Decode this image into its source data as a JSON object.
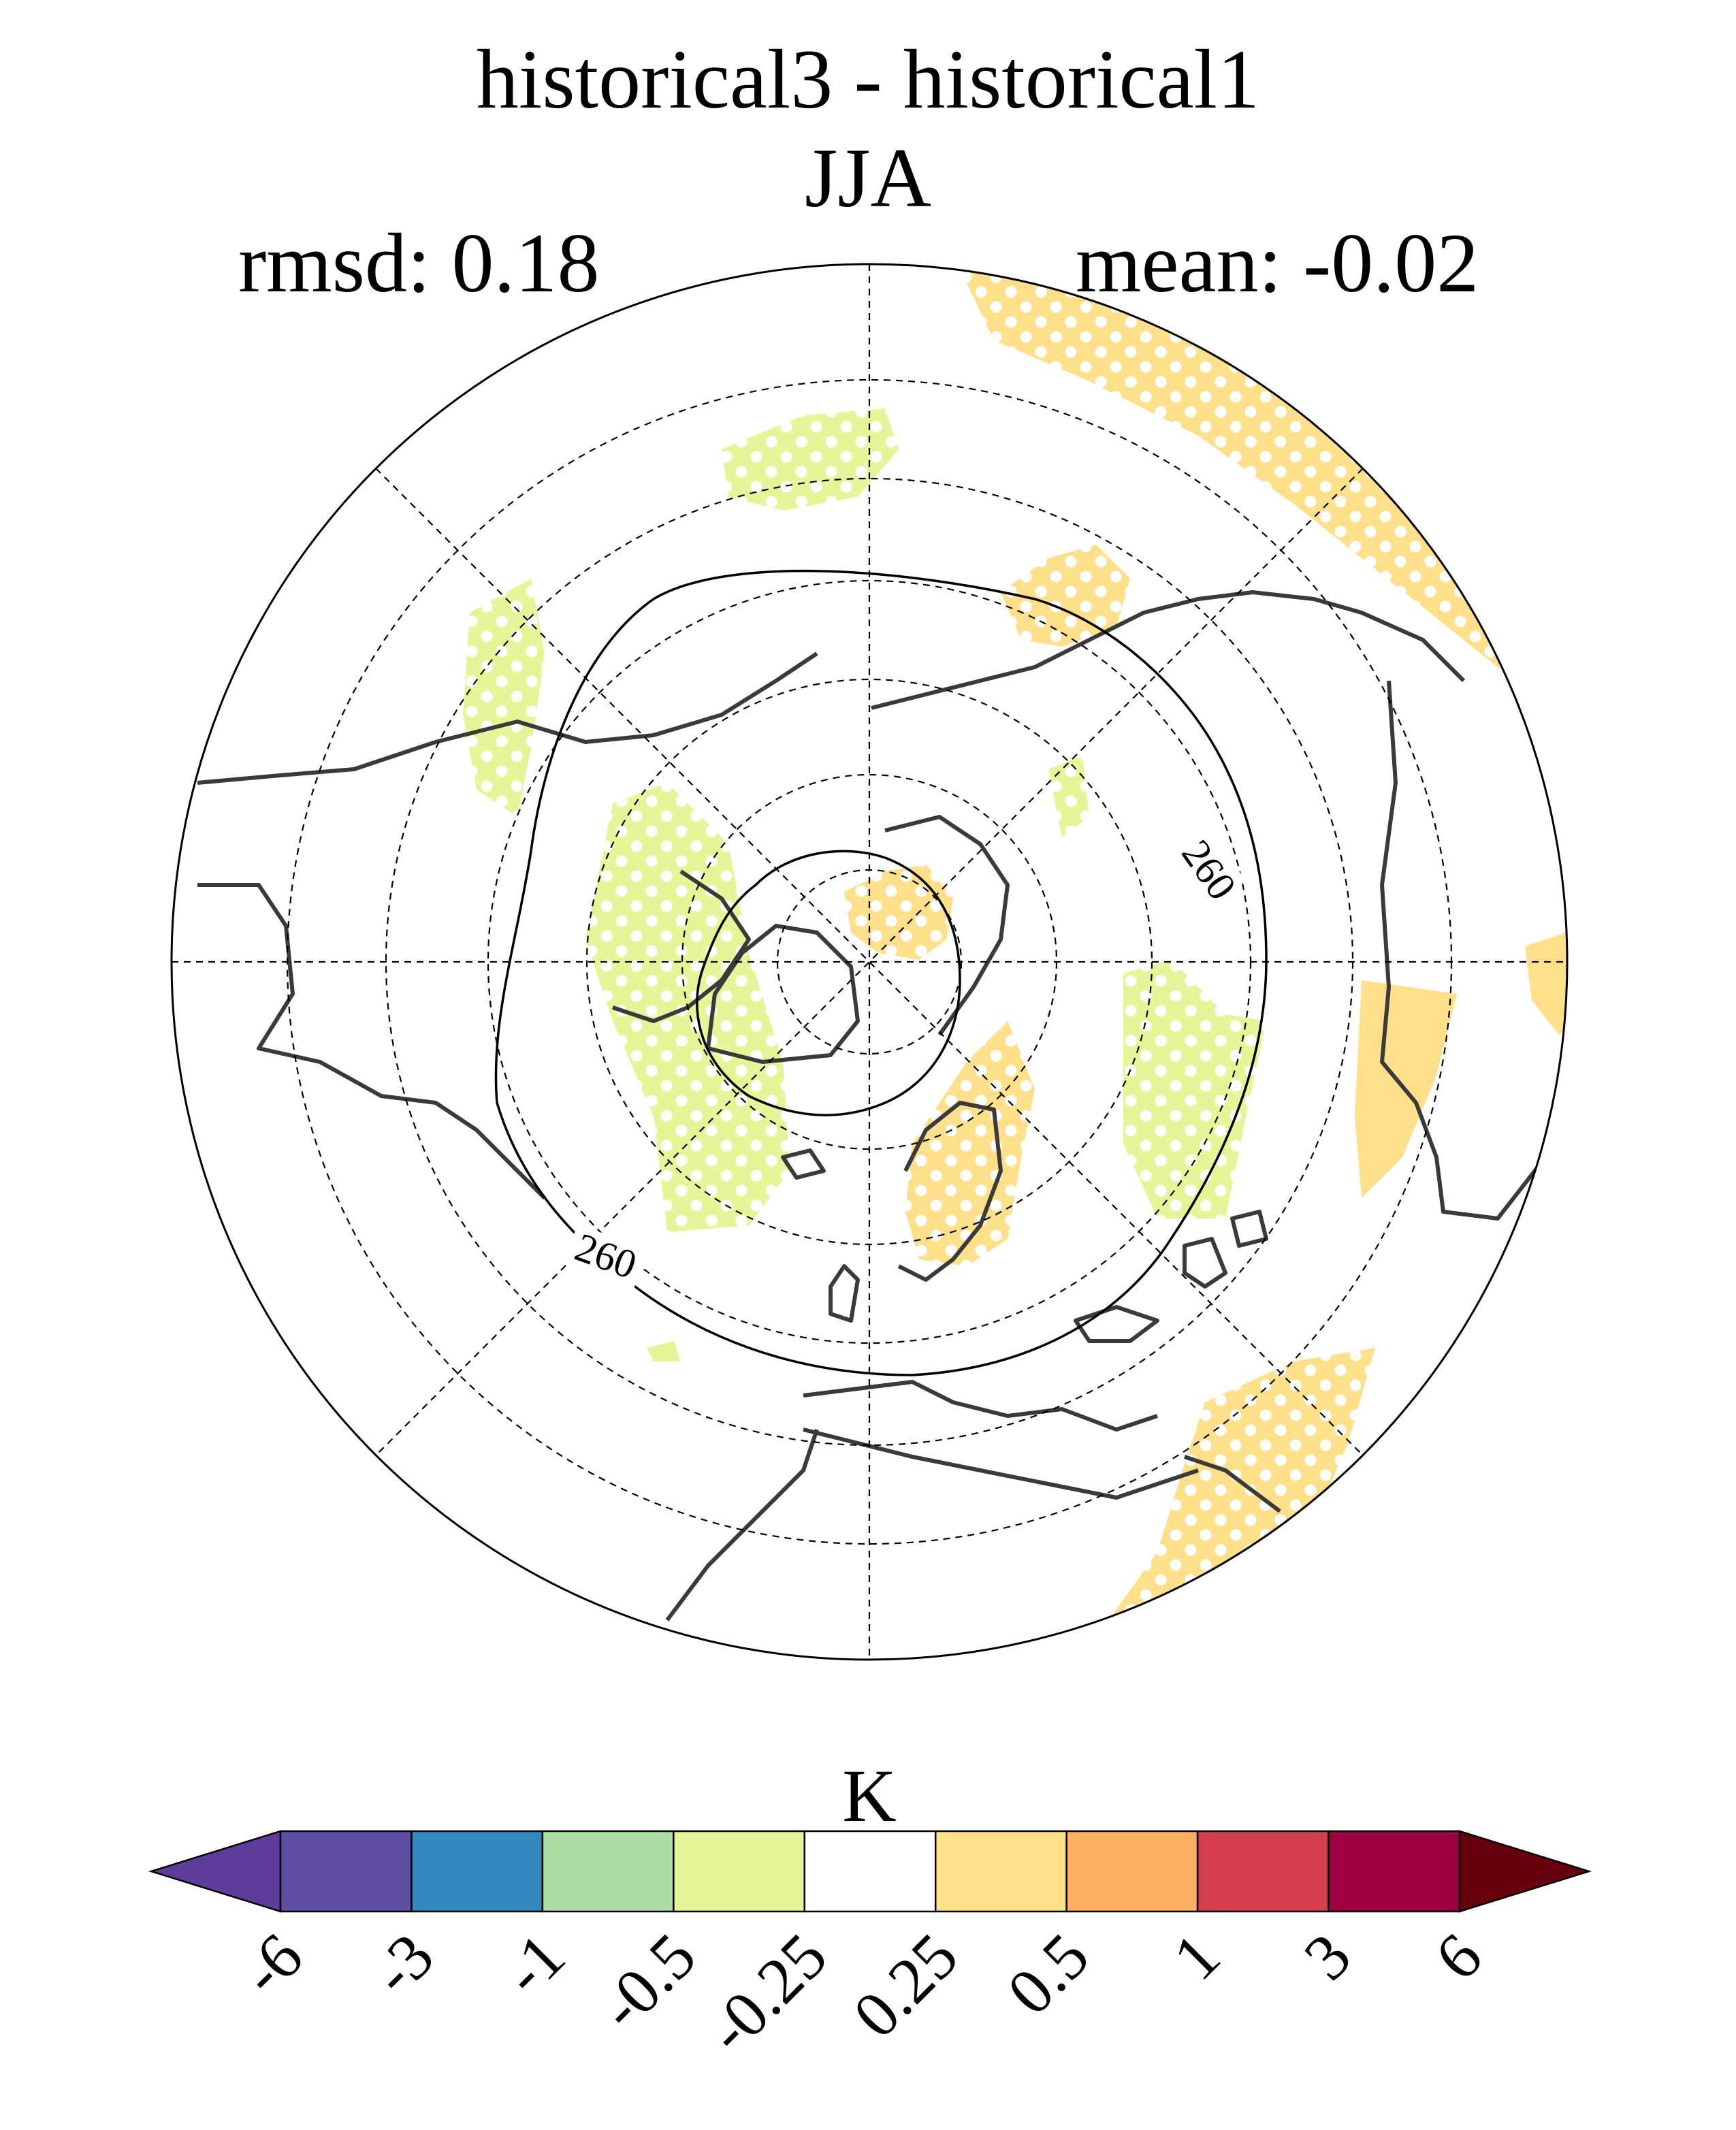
{
  "header": {
    "title": "historical3 - historical1",
    "season": "JJA",
    "rmsd": "rmsd: 0.18",
    "mean": "mean: -0.02"
  },
  "map": {
    "projection": "north-polar-stereographic",
    "contour_label_1": "260",
    "contour_label_2": "260",
    "colors": {
      "neg_025_05": "#e6f598",
      "pos_025_05": "#fee08b",
      "coast": "#3a3a3a"
    }
  },
  "colorbar": {
    "unit": "K",
    "colors": [
      "#5e3c99",
      "#5e4fa2",
      "#3288bd",
      "#abdda4",
      "#e6f598",
      "#ffffff",
      "#fee08b",
      "#fdae61",
      "#d53e4f",
      "#9e0142",
      "#67000d"
    ],
    "tick_labels": [
      "-6",
      "-3",
      "-1",
      "-0.5",
      "-0.25",
      "0.25",
      "0.5",
      "1",
      "3",
      "6"
    ]
  }
}
